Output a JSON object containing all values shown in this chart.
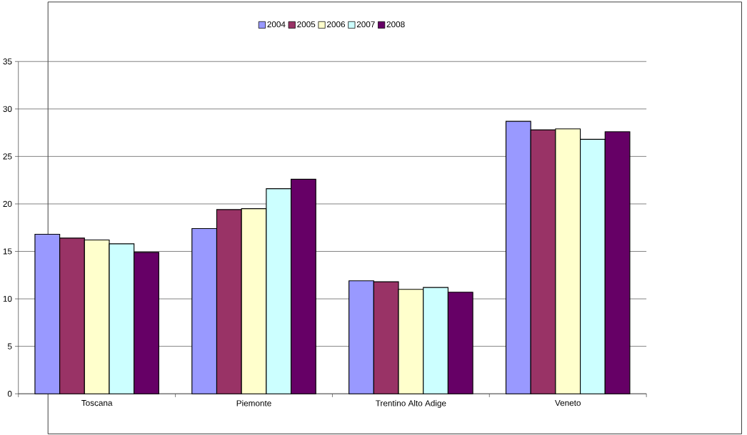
{
  "chart_data": {
    "type": "bar",
    "categories": [
      "Toscana",
      "Piemonte",
      "Trentino Alto Adige",
      "Veneto"
    ],
    "series": [
      {
        "name": "2004",
        "color": "#9999ff",
        "values": [
          16.8,
          17.4,
          11.9,
          28.7
        ]
      },
      {
        "name": "2005",
        "color": "#993366",
        "values": [
          16.4,
          19.4,
          11.8,
          27.8
        ]
      },
      {
        "name": "2006",
        "color": "#ffffcc",
        "values": [
          16.2,
          19.5,
          11.0,
          27.9
        ]
      },
      {
        "name": "2007",
        "color": "#ccffff",
        "values": [
          15.8,
          21.6,
          11.2,
          26.8
        ]
      },
      {
        "name": "2008",
        "color": "#660066",
        "values": [
          14.9,
          22.6,
          10.7,
          27.6
        ]
      }
    ],
    "ylim": [
      0,
      35
    ],
    "yticks": [
      0,
      5,
      10,
      15,
      20,
      25,
      30,
      35
    ],
    "grid": "y",
    "legend": "top"
  }
}
